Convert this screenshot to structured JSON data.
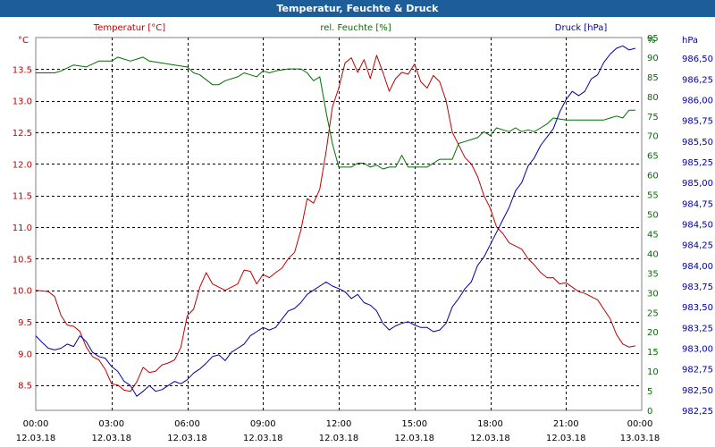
{
  "window": {
    "title": "Temperatur, Feuchte & Druck"
  },
  "colors": {
    "temperature": "#c00000",
    "humidity": "#007000",
    "pressure": "#0000a0",
    "title_bar": "#1c5d9a"
  },
  "chart_data": {
    "type": "line",
    "title": "Temperatur, Feuchte & Druck",
    "grid": true,
    "x": {
      "ticks": [
        {
          "time": "00:00",
          "date": "12.03.18"
        },
        {
          "time": "03:00",
          "date": "12.03.18"
        },
        {
          "time": "06:00",
          "date": "12.03.18"
        },
        {
          "time": "09:00",
          "date": "12.03.18"
        },
        {
          "time": "12:00",
          "date": "12.03.18"
        },
        {
          "time": "15:00",
          "date": "12.03.18"
        },
        {
          "time": "18:00",
          "date": "12.03.18"
        },
        {
          "time": "21:00",
          "date": "12.03.18"
        },
        {
          "time": "00:00",
          "date": "13.03.18"
        }
      ],
      "range_hours": [
        0,
        24
      ]
    },
    "axes": [
      {
        "id": "temp",
        "side": "left",
        "unit": "°C",
        "range": [
          8.1,
          14.0
        ],
        "ticks": [
          8.5,
          9.0,
          9.5,
          10.0,
          10.5,
          11.0,
          11.5,
          12.0,
          12.5,
          13.0,
          13.5
        ]
      },
      {
        "id": "hum",
        "side": "right",
        "unit": "%",
        "range": [
          0,
          95
        ],
        "ticks": [
          0,
          5,
          10,
          15,
          20,
          25,
          30,
          35,
          40,
          45,
          50,
          55,
          60,
          65,
          70,
          75,
          80,
          85,
          90,
          95
        ]
      },
      {
        "id": "press",
        "side": "far-right",
        "unit": "hPa",
        "range": [
          982.25,
          986.75
        ],
        "ticks": [
          "982,25",
          "982,50",
          "982,75",
          "983,00",
          "983,25",
          "983,50",
          "983,75",
          "984,00",
          "984,25",
          "984,50",
          "984,75",
          "985,00",
          "985,25",
          "985,50",
          "985,75",
          "986,00",
          "986,25",
          "986,50"
        ]
      }
    ],
    "series": [
      {
        "name": "Temperatur [°C]",
        "axis": "temp",
        "color": "#c00000",
        "points": [
          [
            0,
            10.0
          ],
          [
            0.5,
            9.98
          ],
          [
            0.75,
            9.9
          ],
          [
            1,
            9.6
          ],
          [
            1.25,
            9.45
          ],
          [
            1.5,
            9.43
          ],
          [
            1.75,
            9.35
          ],
          [
            2,
            9.1
          ],
          [
            2.25,
            8.95
          ],
          [
            2.5,
            8.9
          ],
          [
            2.75,
            8.75
          ],
          [
            3,
            8.52
          ],
          [
            3.25,
            8.5
          ],
          [
            3.5,
            8.42
          ],
          [
            3.75,
            8.4
          ],
          [
            4.0,
            8.55
          ],
          [
            4.25,
            8.78
          ],
          [
            4.5,
            8.7
          ],
          [
            4.75,
            8.72
          ],
          [
            5,
            8.82
          ],
          [
            5.25,
            8.85
          ],
          [
            5.5,
            8.9
          ],
          [
            5.75,
            9.1
          ],
          [
            6,
            9.6
          ],
          [
            6.25,
            9.7
          ],
          [
            6.5,
            10.05
          ],
          [
            6.75,
            10.28
          ],
          [
            7,
            10.1
          ],
          [
            7.25,
            10.05
          ],
          [
            7.5,
            10.0
          ],
          [
            7.75,
            10.05
          ],
          [
            8,
            10.1
          ],
          [
            8.25,
            10.32
          ],
          [
            8.5,
            10.3
          ],
          [
            8.75,
            10.1
          ],
          [
            9,
            10.25
          ],
          [
            9.25,
            10.2
          ],
          [
            9.5,
            10.28
          ],
          [
            9.75,
            10.35
          ],
          [
            10,
            10.5
          ],
          [
            10.25,
            10.6
          ],
          [
            10.5,
            10.95
          ],
          [
            10.75,
            11.45
          ],
          [
            11,
            11.38
          ],
          [
            11.25,
            11.6
          ],
          [
            11.5,
            12.2
          ],
          [
            11.75,
            12.9
          ],
          [
            12,
            13.2
          ],
          [
            12.25,
            13.6
          ],
          [
            12.5,
            13.68
          ],
          [
            12.75,
            13.45
          ],
          [
            13,
            13.65
          ],
          [
            13.25,
            13.35
          ],
          [
            13.5,
            13.72
          ],
          [
            13.75,
            13.45
          ],
          [
            14,
            13.15
          ],
          [
            14.25,
            13.35
          ],
          [
            14.5,
            13.45
          ],
          [
            14.75,
            13.42
          ],
          [
            15,
            13.58
          ],
          [
            15.25,
            13.3
          ],
          [
            15.5,
            13.2
          ],
          [
            15.75,
            13.4
          ],
          [
            16,
            13.3
          ],
          [
            16.25,
            13.0
          ],
          [
            16.5,
            12.5
          ],
          [
            16.75,
            12.3
          ],
          [
            17,
            12.1
          ],
          [
            17.25,
            12.0
          ],
          [
            17.5,
            11.8
          ],
          [
            17.75,
            11.5
          ],
          [
            18,
            11.3
          ],
          [
            18.25,
            11.0
          ],
          [
            18.5,
            10.9
          ],
          [
            18.75,
            10.75
          ],
          [
            19,
            10.7
          ],
          [
            19.25,
            10.65
          ],
          [
            19.5,
            10.5
          ],
          [
            19.75,
            10.4
          ],
          [
            20,
            10.28
          ],
          [
            20.25,
            10.2
          ],
          [
            20.5,
            10.2
          ],
          [
            20.75,
            10.1
          ],
          [
            21,
            10.12
          ],
          [
            21.25,
            10.05
          ],
          [
            21.5,
            9.98
          ],
          [
            21.75,
            9.95
          ],
          [
            22,
            9.9
          ],
          [
            22.25,
            9.85
          ],
          [
            22.5,
            9.7
          ],
          [
            22.75,
            9.55
          ],
          [
            23,
            9.3
          ],
          [
            23.25,
            9.15
          ],
          [
            23.5,
            9.1
          ],
          [
            23.75,
            9.12
          ]
        ]
      },
      {
        "name": "rel. Feuchte [%]",
        "axis": "hum",
        "color": "#007000",
        "points": [
          [
            0,
            86
          ],
          [
            0.75,
            86
          ],
          [
            1,
            86.5
          ],
          [
            1.5,
            88
          ],
          [
            2,
            87.5
          ],
          [
            2.5,
            89
          ],
          [
            3,
            89
          ],
          [
            3.25,
            90
          ],
          [
            3.5,
            89.5
          ],
          [
            3.75,
            89
          ],
          [
            4,
            89.5
          ],
          [
            4.25,
            90
          ],
          [
            4.5,
            89
          ],
          [
            5,
            88.5
          ],
          [
            5.5,
            88
          ],
          [
            6,
            87.5
          ],
          [
            6.25,
            86
          ],
          [
            6.5,
            85.5
          ],
          [
            7,
            83
          ],
          [
            7.25,
            83
          ],
          [
            7.5,
            84
          ],
          [
            8,
            85
          ],
          [
            8.25,
            86
          ],
          [
            8.5,
            85.5
          ],
          [
            8.75,
            85
          ],
          [
            9,
            86.5
          ],
          [
            9.25,
            86
          ],
          [
            9.5,
            86.5
          ],
          [
            10,
            87
          ],
          [
            10.5,
            87
          ],
          [
            10.75,
            86
          ],
          [
            11,
            84
          ],
          [
            11.25,
            85
          ],
          [
            11.5,
            76
          ],
          [
            11.75,
            68
          ],
          [
            12,
            62
          ],
          [
            12.25,
            62
          ],
          [
            12.5,
            62
          ],
          [
            12.75,
            63
          ],
          [
            13,
            63
          ],
          [
            13.25,
            62
          ],
          [
            13.5,
            62.5
          ],
          [
            13.75,
            61.5
          ],
          [
            14,
            62
          ],
          [
            14.25,
            62
          ],
          [
            14.5,
            65
          ],
          [
            14.75,
            62
          ],
          [
            15,
            62
          ],
          [
            15.5,
            62
          ],
          [
            15.75,
            63
          ],
          [
            16,
            64
          ],
          [
            16.5,
            64
          ],
          [
            16.75,
            68
          ],
          [
            17,
            68.5
          ],
          [
            17.25,
            69
          ],
          [
            17.5,
            69.5
          ],
          [
            17.75,
            71
          ],
          [
            18,
            70
          ],
          [
            18.25,
            72
          ],
          [
            18.5,
            71.5
          ],
          [
            18.75,
            71
          ],
          [
            19,
            72
          ],
          [
            19.25,
            71
          ],
          [
            19.5,
            71.5
          ],
          [
            19.75,
            71
          ],
          [
            20,
            72
          ],
          [
            20.25,
            73
          ],
          [
            20.5,
            74.5
          ],
          [
            21,
            74
          ],
          [
            21.25,
            74
          ],
          [
            21.5,
            74
          ],
          [
            22,
            74
          ],
          [
            22.25,
            74
          ],
          [
            22.5,
            74
          ],
          [
            22.75,
            74.5
          ],
          [
            23,
            75
          ],
          [
            23.25,
            74.5
          ],
          [
            23.5,
            76.5
          ],
          [
            23.75,
            76.5
          ]
        ]
      },
      {
        "name": "Druck [hPa]",
        "axis": "press",
        "color": "#0000a0",
        "points": [
          [
            0,
            983.15
          ],
          [
            0.25,
            983.07
          ],
          [
            0.5,
            983.0
          ],
          [
            0.75,
            982.98
          ],
          [
            1,
            983.0
          ],
          [
            1.25,
            983.05
          ],
          [
            1.5,
            983.02
          ],
          [
            1.75,
            983.15
          ],
          [
            2,
            983.08
          ],
          [
            2.25,
            982.95
          ],
          [
            2.5,
            982.9
          ],
          [
            2.75,
            982.88
          ],
          [
            3,
            982.78
          ],
          [
            3.25,
            982.72
          ],
          [
            3.5,
            982.6
          ],
          [
            3.75,
            982.55
          ],
          [
            4,
            982.42
          ],
          [
            4.25,
            982.48
          ],
          [
            4.5,
            982.55
          ],
          [
            4.75,
            982.48
          ],
          [
            5,
            982.5
          ],
          [
            5.25,
            982.55
          ],
          [
            5.5,
            982.6
          ],
          [
            5.75,
            982.57
          ],
          [
            6,
            982.62
          ],
          [
            6.25,
            982.7
          ],
          [
            6.5,
            982.75
          ],
          [
            6.75,
            982.82
          ],
          [
            7,
            982.9
          ],
          [
            7.25,
            982.92
          ],
          [
            7.5,
            982.85
          ],
          [
            7.75,
            982.95
          ],
          [
            8,
            983.0
          ],
          [
            8.25,
            983.05
          ],
          [
            8.5,
            983.15
          ],
          [
            8.75,
            983.2
          ],
          [
            9,
            983.25
          ],
          [
            9.25,
            983.22
          ],
          [
            9.5,
            983.25
          ],
          [
            9.75,
            983.35
          ],
          [
            10,
            983.45
          ],
          [
            10.25,
            983.48
          ],
          [
            10.5,
            983.55
          ],
          [
            10.75,
            983.65
          ],
          [
            11,
            983.7
          ],
          [
            11.25,
            983.75
          ],
          [
            11.5,
            983.8
          ],
          [
            11.75,
            983.75
          ],
          [
            12,
            983.72
          ],
          [
            12.25,
            983.68
          ],
          [
            12.5,
            983.6
          ],
          [
            12.75,
            983.65
          ],
          [
            13,
            983.55
          ],
          [
            13.25,
            983.52
          ],
          [
            13.5,
            983.45
          ],
          [
            13.75,
            983.3
          ],
          [
            14,
            983.22
          ],
          [
            14.25,
            983.27
          ],
          [
            14.5,
            983.3
          ],
          [
            14.75,
            983.32
          ],
          [
            15,
            983.28
          ],
          [
            15.25,
            983.25
          ],
          [
            15.5,
            983.25
          ],
          [
            15.75,
            983.2
          ],
          [
            16,
            983.22
          ],
          [
            16.25,
            983.3
          ],
          [
            16.5,
            983.5
          ],
          [
            16.75,
            983.6
          ],
          [
            17,
            983.72
          ],
          [
            17.25,
            983.8
          ],
          [
            17.5,
            984.0
          ],
          [
            17.75,
            984.1
          ],
          [
            18,
            984.25
          ],
          [
            18.25,
            984.4
          ],
          [
            18.5,
            984.55
          ],
          [
            18.75,
            984.7
          ],
          [
            19,
            984.9
          ],
          [
            19.25,
            985.0
          ],
          [
            19.5,
            985.2
          ],
          [
            19.75,
            985.3
          ],
          [
            20,
            985.45
          ],
          [
            20.25,
            985.55
          ],
          [
            20.5,
            985.65
          ],
          [
            20.75,
            985.85
          ],
          [
            21,
            986.0
          ],
          [
            21.25,
            986.1
          ],
          [
            21.5,
            986.05
          ],
          [
            21.75,
            986.1
          ],
          [
            22,
            986.25
          ],
          [
            22.25,
            986.3
          ],
          [
            22.5,
            986.45
          ],
          [
            22.75,
            986.55
          ],
          [
            23,
            986.62
          ],
          [
            23.25,
            986.65
          ],
          [
            23.5,
            986.6
          ],
          [
            23.75,
            986.62
          ]
        ]
      }
    ]
  }
}
